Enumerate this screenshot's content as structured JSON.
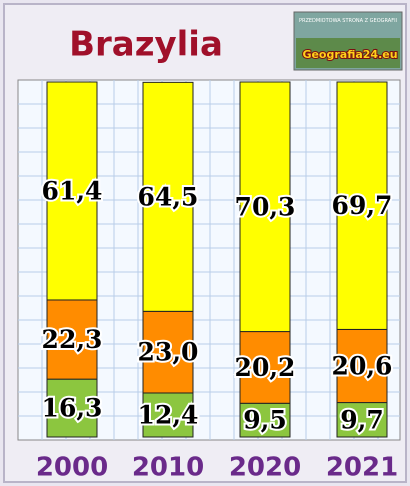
{
  "chart_data": {
    "type": "stacked-bar",
    "title": "Brazylia",
    "logo": {
      "caption": "PRZEDMIOTOWA STRONA Z GEOGRAFII",
      "name": "Geografia24.eu"
    },
    "categories": [
      "2000",
      "2010",
      "2020",
      "2021"
    ],
    "ylim": [
      0,
      100
    ],
    "series": [
      {
        "color": "#8cc63f",
        "values": [
          16.3,
          12.4,
          9.5,
          9.7
        ],
        "value_labels": [
          "16,3",
          "12,4",
          "9,5",
          "9,7"
        ]
      },
      {
        "color": "#ff8c00",
        "values": [
          22.3,
          23.0,
          20.2,
          20.6
        ],
        "value_labels": [
          "22,3",
          "23,0",
          "20,2",
          "20,6"
        ]
      },
      {
        "color": "#ffff00",
        "values": [
          61.4,
          64.5,
          70.3,
          69.7
        ],
        "value_labels": [
          "61,4",
          "64,5",
          "70,3",
          "69,7"
        ]
      }
    ]
  }
}
